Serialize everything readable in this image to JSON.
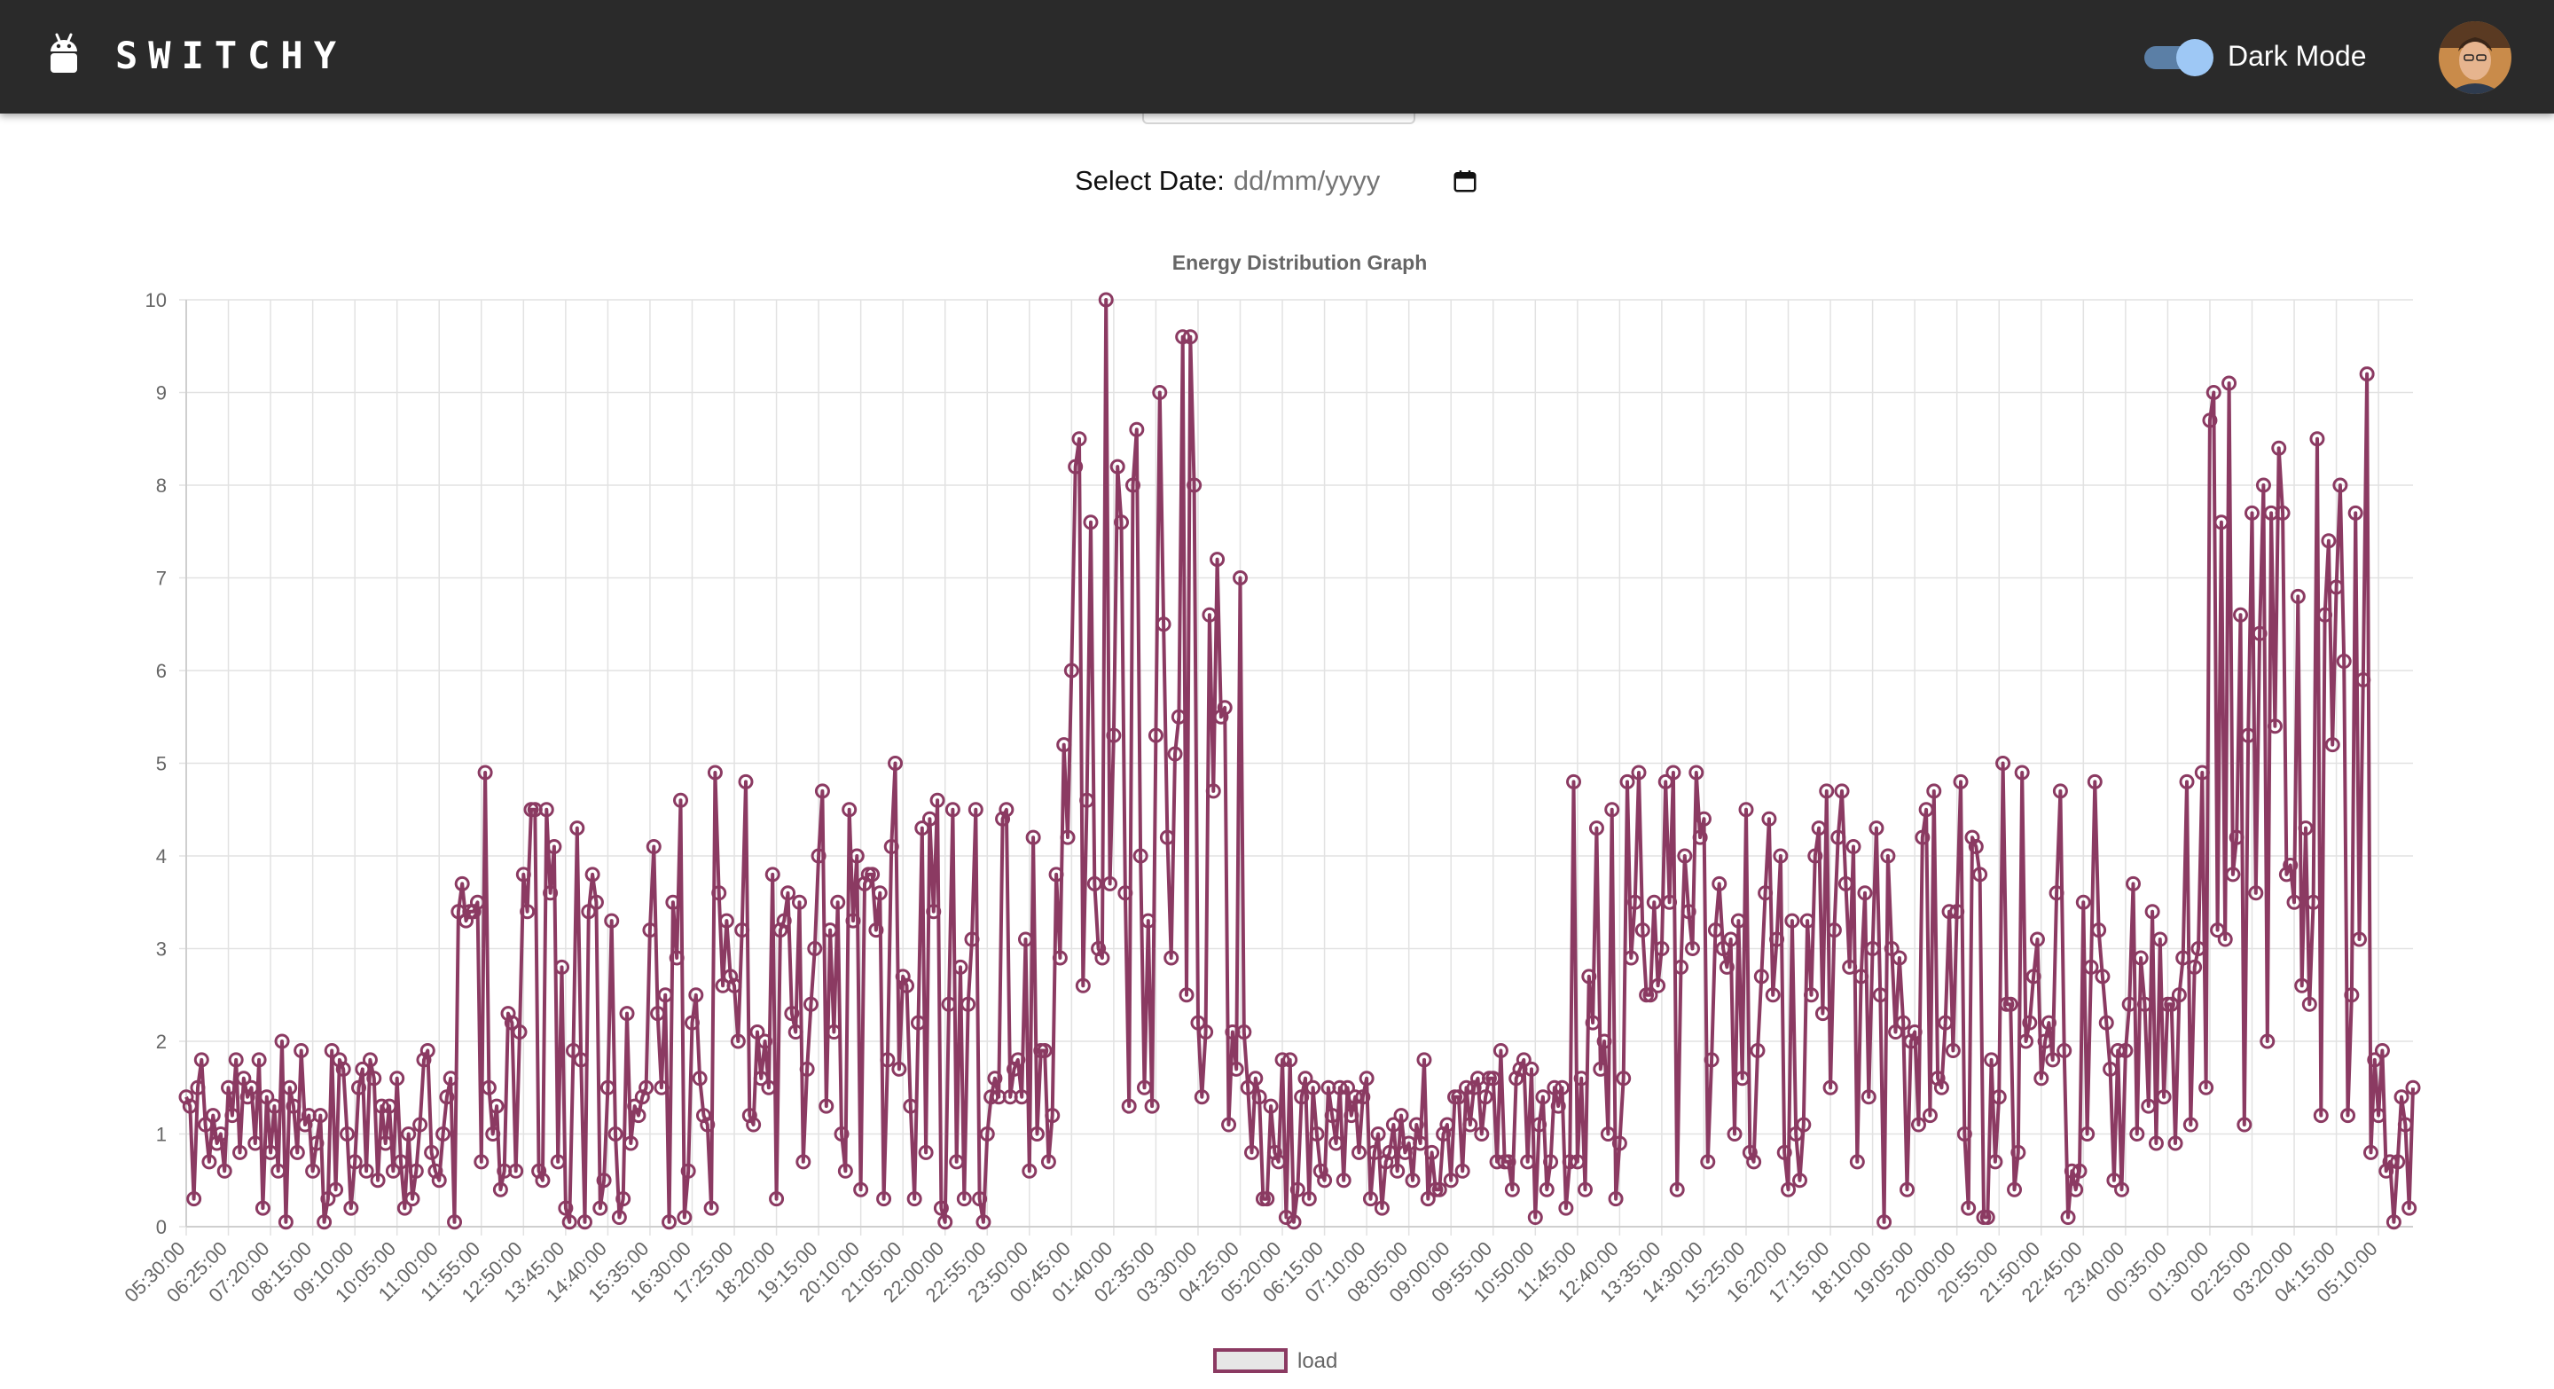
{
  "app": {
    "name": "SWITCHY"
  },
  "navbar": {
    "dark_mode_label": "Dark Mode",
    "dark_mode_on": true,
    "brand_icon": "android-robot-icon",
    "avatar_icon": "user-avatar"
  },
  "date_picker": {
    "label": "Select Date:",
    "placeholder": "dd/mm/yyyy",
    "icon": "calendar-icon"
  },
  "colors": {
    "navbar": "#2a2a2a",
    "series": "#8b3a62",
    "toggle_track": "#5b7fa6",
    "toggle_knob": "#9ec8f5"
  },
  "chart_data": {
    "type": "line",
    "title": "Energy Distribution Graph",
    "xlabel": "",
    "ylabel": "",
    "ylim": [
      0,
      10
    ],
    "yticks": [
      0,
      1,
      2,
      3,
      4,
      5,
      6,
      7,
      8,
      9,
      10
    ],
    "x_tick_labels": [
      "05:30:00",
      "06:25:00",
      "07:20:00",
      "08:15:00",
      "09:10:00",
      "10:05:00",
      "11:00:00",
      "11:55:00",
      "12:50:00",
      "13:45:00",
      "14:40:00",
      "15:35:00",
      "16:30:00",
      "17:25:00",
      "18:20:00",
      "19:15:00",
      "20:10:00",
      "21:05:00",
      "22:00:00",
      "22:55:00",
      "23:50:00",
      "00:45:00",
      "01:40:00",
      "02:35:00",
      "03:30:00",
      "04:25:00",
      "05:20:00",
      "06:15:00",
      "07:10:00",
      "08:05:00",
      "09:00:00",
      "09:55:00",
      "10:50:00",
      "11:45:00",
      "12:40:00",
      "13:35:00",
      "14:30:00",
      "15:25:00",
      "16:20:00",
      "17:15:00",
      "18:10:00",
      "19:05:00",
      "20:00:00",
      "20:55:00",
      "21:50:00",
      "22:45:00",
      "23:40:00",
      "00:35:00",
      "01:30:00",
      "02:25:00",
      "03:20:00",
      "04:15:00",
      "05:10:00"
    ],
    "grid": true,
    "legend_position": "bottom",
    "series": [
      {
        "name": "load",
        "color": "#8b3a62",
        "values": [
          1.4,
          1.3,
          0.3,
          1.5,
          1.8,
          1.1,
          0.7,
          1.2,
          0.9,
          1.0,
          0.6,
          1.5,
          1.2,
          1.8,
          0.8,
          1.6,
          1.4,
          1.5,
          0.9,
          1.8,
          0.2,
          1.4,
          0.8,
          1.3,
          0.6,
          2.0,
          0.05,
          1.5,
          1.3,
          0.8,
          1.9,
          1.1,
          1.2,
          0.6,
          0.9,
          1.2,
          0.05,
          0.3,
          1.9,
          0.4,
          1.8,
          1.7,
          1.0,
          0.2,
          0.7,
          1.5,
          1.7,
          0.6,
          1.8,
          1.6,
          0.5,
          1.3,
          0.9,
          1.3,
          0.6,
          1.6,
          0.7,
          0.2,
          1.0,
          0.3,
          0.6,
          1.1,
          1.8,
          1.9,
          0.8,
          0.6,
          0.5,
          1.0,
          1.4,
          1.6,
          0.05,
          3.4,
          3.7,
          3.3,
          3.4,
          3.4,
          3.5,
          0.7,
          4.9,
          1.5,
          1.0,
          1.3,
          0.4,
          0.6,
          2.3,
          2.2,
          0.6,
          2.1,
          3.8,
          3.4,
          4.5,
          4.5,
          0.6,
          0.5,
          4.5,
          3.6,
          4.1,
          0.7,
          2.8,
          0.2,
          0.05,
          1.9,
          4.3,
          1.8,
          0.05,
          3.4,
          3.8,
          3.5,
          0.2,
          0.5,
          1.5,
          3.3,
          1.0,
          0.1,
          0.3,
          2.3,
          0.9,
          1.3,
          1.2,
          1.4,
          1.5,
          3.2,
          4.1,
          2.3,
          1.5,
          2.5,
          0.05,
          3.5,
          2.9,
          4.6,
          0.1,
          0.6,
          2.2,
          2.5,
          1.6,
          1.2,
          1.1,
          0.2,
          4.9,
          3.6,
          2.6,
          3.3,
          2.7,
          2.6,
          2.0,
          3.2,
          4.8,
          1.2,
          1.1,
          2.1,
          1.6,
          2.0,
          1.5,
          3.8,
          0.3,
          3.2,
          3.3,
          3.6,
          2.3,
          2.1,
          3.5,
          0.7,
          1.7,
          2.4,
          3.0,
          4.0,
          4.7,
          1.3,
          3.2,
          2.1,
          3.5,
          1.0,
          0.6,
          4.5,
          3.3,
          4.0,
          0.4,
          3.7,
          3.8,
          3.8,
          3.2,
          3.6,
          0.3,
          1.8,
          4.1,
          5.0,
          1.7,
          2.7,
          2.6,
          1.3,
          0.3,
          2.2,
          4.3,
          0.8,
          4.4,
          3.4,
          4.6,
          0.2,
          0.05,
          2.4,
          4.5,
          0.7,
          2.8,
          0.3,
          2.4,
          3.1,
          4.5,
          0.3,
          0.05,
          1.0,
          1.4,
          1.6,
          1.4,
          4.4,
          4.5,
          1.4,
          1.7,
          1.8,
          1.4,
          3.1,
          0.6,
          4.2,
          1.0,
          1.9,
          1.9,
          0.7,
          1.2,
          3.8,
          2.9,
          5.2,
          4.2,
          6.0,
          8.2,
          8.5,
          2.6,
          4.6,
          7.6,
          3.7,
          3.0,
          2.9,
          10.0,
          3.7,
          5.3,
          8.2,
          7.6,
          3.6,
          1.3,
          8.0,
          8.6,
          4.0,
          1.5,
          3.3,
          1.3,
          5.3,
          9.0,
          6.5,
          4.2,
          2.9,
          5.1,
          5.5,
          9.6,
          2.5,
          9.6,
          8.0,
          2.2,
          1.4,
          2.1,
          6.6,
          4.7,
          7.2,
          5.5,
          5.6,
          1.1,
          2.1,
          1.7,
          7.0,
          2.1,
          1.5,
          0.8,
          1.6,
          1.4,
          0.3,
          0.3,
          1.3,
          0.8,
          0.7,
          1.8,
          0.1,
          1.8,
          0.05,
          0.4,
          1.4,
          1.6,
          0.3,
          1.5,
          1.0,
          0.6,
          0.5,
          1.5,
          1.2,
          0.9,
          1.5,
          0.5,
          1.5,
          1.2,
          1.4,
          0.8,
          1.4,
          1.6,
          0.3,
          0.8,
          1.0,
          0.2,
          0.7,
          0.8,
          1.1,
          0.6,
          1.2,
          0.8,
          0.9,
          0.5,
          1.1,
          0.9,
          1.8,
          0.3,
          0.8,
          0.4,
          0.4,
          1.0,
          1.1,
          0.5,
          1.4,
          1.4,
          0.6,
          1.5,
          1.1,
          1.5,
          1.6,
          1.0,
          1.4,
          1.6,
          1.6,
          0.7,
          1.9,
          0.7,
          0.7,
          0.4,
          1.6,
          1.7,
          1.8,
          0.7,
          1.7,
          0.1,
          1.1,
          1.4,
          0.4,
          0.7,
          1.5,
          1.3,
          1.5,
          0.2,
          0.7,
          4.8,
          0.7,
          1.6,
          0.4,
          2.7,
          2.2,
          4.3,
          1.7,
          2.0,
          1.0,
          4.5,
          0.3,
          0.9,
          1.6,
          4.8,
          2.9,
          3.5,
          4.9,
          3.2,
          2.5,
          2.5,
          3.5,
          2.6,
          3.0,
          4.8,
          3.5,
          4.9,
          0.4,
          2.8,
          4.0,
          3.4,
          3.0,
          4.9,
          4.2,
          4.4,
          0.7,
          1.8,
          3.2,
          3.7,
          3.0,
          2.8,
          3.1,
          1.0,
          3.3,
          1.6,
          4.5,
          0.8,
          0.7,
          1.9,
          2.7,
          3.6,
          4.4,
          2.5,
          3.1,
          4.0,
          0.8,
          0.4,
          3.3,
          1.0,
          0.5,
          1.1,
          3.3,
          2.5,
          4.0,
          4.3,
          2.3,
          4.7,
          1.5,
          3.2,
          4.2,
          4.7,
          3.7,
          2.8,
          4.1,
          0.7,
          2.7,
          3.6,
          1.4,
          3.0,
          4.3,
          2.5,
          0.05,
          4.0,
          3.0,
          2.1,
          2.9,
          2.2,
          0.4,
          2.0,
          2.1,
          1.1,
          4.2,
          4.5,
          1.2,
          4.7,
          1.6,
          1.5,
          2.2,
          3.4,
          1.9,
          3.4,
          4.8,
          1.0,
          0.2,
          4.2,
          4.1,
          3.8,
          0.1,
          0.1,
          1.8,
          0.7,
          1.4,
          5.0,
          2.4,
          2.4,
          0.4,
          0.8,
          4.9,
          2.0,
          2.2,
          2.7,
          3.1,
          1.6,
          2.0,
          2.2,
          1.8,
          3.6,
          4.7,
          1.9,
          0.1,
          0.6,
          0.4,
          0.6,
          3.5,
          1.0,
          2.8,
          4.8,
          3.2,
          2.7,
          2.2,
          1.7,
          0.5,
          1.9,
          0.4,
          1.9,
          2.4,
          3.7,
          1.0,
          2.9,
          2.4,
          1.3,
          3.4,
          0.9,
          3.1,
          1.4,
          2.4,
          2.4,
          0.9,
          2.5,
          2.9,
          4.8,
          1.1,
          2.8,
          3.0,
          4.9,
          1.5,
          8.7,
          9.0,
          3.2,
          7.6,
          3.1,
          9.1,
          3.8,
          4.2,
          6.6,
          1.1,
          5.3,
          7.7,
          3.6,
          6.4,
          8.0,
          2.0,
          7.7,
          5.4,
          8.4,
          7.7,
          3.8,
          3.9,
          3.5,
          6.8,
          2.6,
          4.3,
          2.4,
          3.5,
          8.5,
          1.2,
          6.6,
          7.4,
          5.2,
          6.9,
          8.0,
          6.1,
          1.2,
          2.5,
          7.7,
          3.1,
          5.9,
          9.2,
          0.8,
          1.8,
          1.2,
          1.9,
          0.6,
          0.7,
          0.05,
          0.7,
          1.4,
          1.1,
          0.2,
          1.5
        ]
      }
    ]
  }
}
